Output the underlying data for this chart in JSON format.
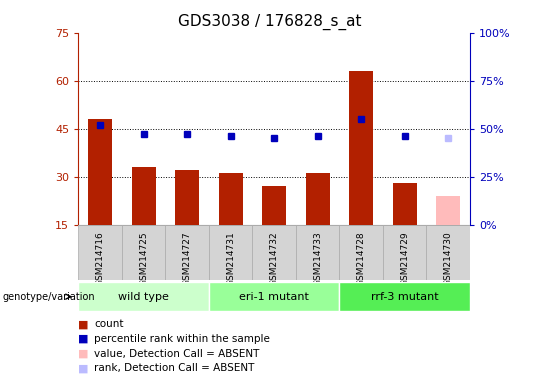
{
  "title": "GDS3038 / 176828_s_at",
  "samples": [
    "GSM214716",
    "GSM214725",
    "GSM214727",
    "GSM214731",
    "GSM214732",
    "GSM214733",
    "GSM214728",
    "GSM214729",
    "GSM214730"
  ],
  "count_values": [
    48,
    33,
    32,
    31,
    27,
    31,
    63,
    28,
    null
  ],
  "percentile_values": [
    52,
    47,
    47,
    46,
    45,
    46,
    55,
    46,
    null
  ],
  "absent_count": [
    null,
    null,
    null,
    null,
    null,
    null,
    null,
    null,
    24
  ],
  "absent_rank": [
    null,
    null,
    null,
    null,
    null,
    null,
    null,
    null,
    45
  ],
  "ylim_left": [
    15,
    75
  ],
  "ylim_right": [
    0,
    100
  ],
  "left_ticks": [
    15,
    30,
    45,
    60,
    75
  ],
  "right_ticks": [
    0,
    25,
    50,
    75,
    100
  ],
  "bar_color": "#b22000",
  "dot_color": "#0000bb",
  "absent_bar_color": "#ffbbbb",
  "absent_dot_color": "#bbbbff",
  "grid_lines": [
    30,
    45,
    60
  ],
  "group_data": [
    {
      "start": 0,
      "end": 2,
      "label": "wild type",
      "color": "#ccffcc"
    },
    {
      "start": 3,
      "end": 5,
      "label": "eri-1 mutant",
      "color": "#99ff99"
    },
    {
      "start": 6,
      "end": 8,
      "label": "rrf-3 mutant",
      "color": "#55ee55"
    }
  ],
  "legend_items": [
    {
      "color": "#b22000",
      "label": "count"
    },
    {
      "color": "#0000bb",
      "label": "percentile rank within the sample"
    },
    {
      "color": "#ffbbbb",
      "label": "value, Detection Call = ABSENT"
    },
    {
      "color": "#bbbbff",
      "label": "rank, Detection Call = ABSENT"
    }
  ]
}
